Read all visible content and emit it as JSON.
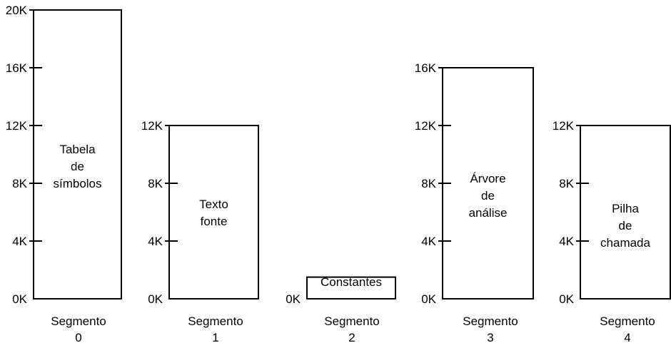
{
  "segments": [
    {
      "label_lines": [
        "Tabela",
        "de",
        "símbolos"
      ],
      "size_k": 20,
      "ticks": [
        "0K",
        "4K",
        "8K",
        "12K",
        "16K",
        "20K"
      ],
      "caption": [
        "Segmento",
        "0"
      ]
    },
    {
      "label_lines": [
        "Texto",
        "fonte"
      ],
      "size_k": 12,
      "ticks": [
        "0K",
        "4K",
        "8K",
        "12K"
      ],
      "caption": [
        "Segmento",
        "1"
      ]
    },
    {
      "label_lines": [
        "Constantes"
      ],
      "size_k": 1.5,
      "ticks": [
        "0K"
      ],
      "caption": [
        "Segmento",
        "2"
      ]
    },
    {
      "label_lines": [
        "Árvore",
        "de",
        "análise"
      ],
      "size_k": 16,
      "ticks": [
        "0K",
        "4K",
        "8K",
        "12K",
        "16K"
      ],
      "caption": [
        "Segmento",
        "3"
      ]
    },
    {
      "label_lines": [
        "Pilha",
        "de",
        "chamada"
      ],
      "size_k": 12,
      "ticks": [
        "0K",
        "4K",
        "8K",
        "12K"
      ],
      "caption": [
        "Segmento",
        "4"
      ]
    }
  ]
}
